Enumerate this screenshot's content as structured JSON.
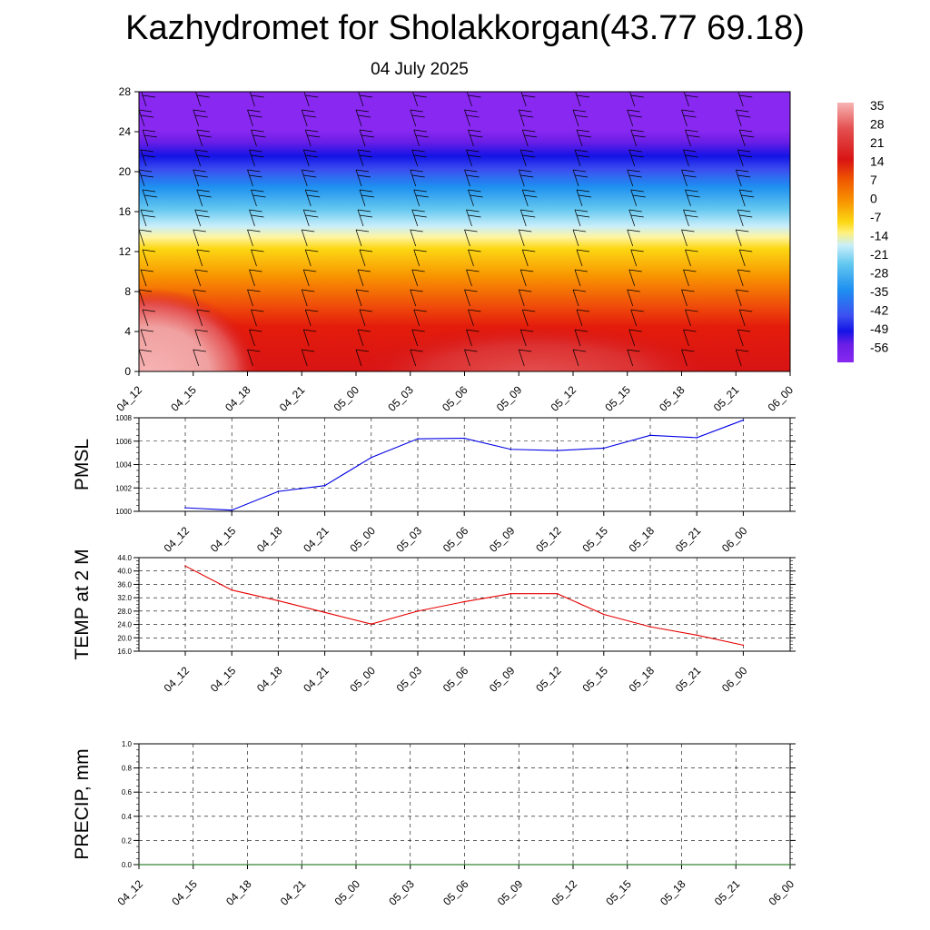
{
  "title": "Kazhydromet for Sholakkorgan(43.77 69.18)",
  "subtitle": "04 July 2025",
  "chart_data": [
    {
      "type": "heatmap",
      "title": "Kazhydromet for Sholakkorgan(43.77 69.18)",
      "subtitle": "04 July 2025",
      "x_ticks": [
        "04_12",
        "04_15",
        "04_18",
        "04_21",
        "05_00",
        "05_03",
        "05_06",
        "05_09",
        "05_12",
        "05_15",
        "05_18",
        "05_21",
        "06_00"
      ],
      "y_ticks": [
        0,
        4,
        8,
        12,
        16,
        20,
        24,
        28
      ],
      "ylim": [
        0,
        28
      ],
      "colorbar_labels": [
        "35",
        "28",
        "21",
        "14",
        "7",
        "0",
        "-7",
        "-14",
        "-21",
        "-28",
        "-35",
        "-42",
        "-49",
        "-56"
      ],
      "colorbar_colors": [
        "#f7b3b3",
        "#e45050",
        "#d81414",
        "#e41c0c",
        "#f05a00",
        "#f89400",
        "#fcd814",
        "#fff07a",
        "#c8eefa",
        "#64c8f0",
        "#1e90f0",
        "#3c50f0",
        "#1414e6",
        "#6a1ee6",
        "#8828f0"
      ]
    },
    {
      "type": "line",
      "ylabel": "PMSL",
      "x": [
        "04_12",
        "04_15",
        "04_18",
        "04_21",
        "05_00",
        "05_03",
        "05_06",
        "05_09",
        "05_12",
        "05_15",
        "05_18",
        "05_21",
        "06_00"
      ],
      "y_ticks": [
        "1000",
        "1002",
        "1004",
        "1006",
        "1008"
      ],
      "ylim": [
        1000,
        1008
      ],
      "series": [
        {
          "values": [
            1000.3,
            1000.1,
            1001.7,
            1002.2,
            1004.6,
            1006.2,
            1006.25,
            1005.3,
            1005.2,
            1005.4,
            1006.5,
            1006.3,
            1007.8
          ],
          "color": "#0000e6"
        }
      ]
    },
    {
      "type": "line",
      "ylabel": "TEMP at 2 M",
      "x": [
        "04_12",
        "04_15",
        "04_18",
        "04_21",
        "05_00",
        "05_03",
        "05_06",
        "05_09",
        "05_12",
        "05_15",
        "05_18",
        "05_21",
        "06_00"
      ],
      "y_ticks": [
        "16.0",
        "20.0",
        "24.0",
        "28.0",
        "32.0",
        "36.0",
        "40.0",
        "44.0"
      ],
      "ylim": [
        16,
        44
      ],
      "series": [
        {
          "values": [
            41.5,
            34.3,
            31.1,
            27.6,
            24.1,
            28.0,
            30.8,
            33.2,
            33.2,
            27.0,
            23.3,
            20.8,
            17.8
          ],
          "color": "#e60000"
        }
      ]
    },
    {
      "type": "line",
      "ylabel": "PRECIP, mm",
      "x": [
        "04_12",
        "04_15",
        "04_18",
        "04_21",
        "05_00",
        "05_03",
        "05_06",
        "05_09",
        "05_12",
        "05_15",
        "05_18",
        "05_21",
        "06_00"
      ],
      "y_ticks": [
        "0.0",
        "0.2",
        "0.4",
        "0.6",
        "0.8",
        "1.0"
      ],
      "ylim": [
        0,
        1
      ],
      "series": [
        {
          "values": [
            0,
            0,
            0,
            0,
            0,
            0,
            0,
            0,
            0,
            0,
            0,
            0,
            0
          ],
          "color": "#006400"
        }
      ]
    }
  ]
}
